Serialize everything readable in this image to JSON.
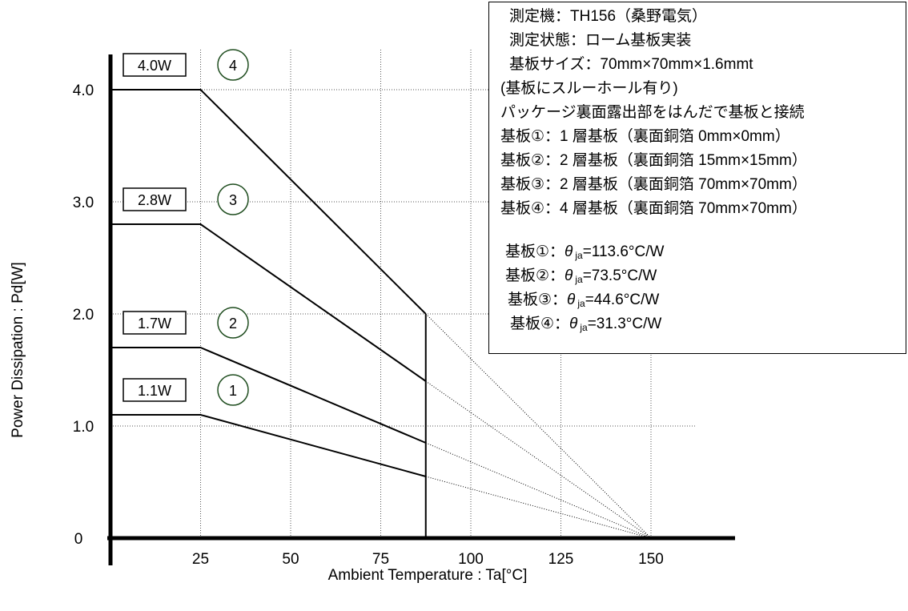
{
  "chart_data": {
    "type": "line",
    "xlabel": "Ambient Temperature : Ta[°C]",
    "ylabel": "Power Dissipation : Pd[W]",
    "xlim": [
      0,
      175
    ],
    "ylim": [
      0,
      4.4
    ],
    "x_ticks": [
      25,
      50,
      75,
      100,
      125,
      150
    ],
    "y_ticks": [
      {
        "value": 0,
        "label": "0"
      },
      {
        "value": 1.0,
        "label": "1.0"
      },
      {
        "value": 2.0,
        "label": "2.0"
      },
      {
        "value": 3.0,
        "label": "3.0"
      },
      {
        "value": 4.0,
        "label": "4.0"
      }
    ],
    "max_temp_cutoff": 87.5,
    "zero_point": 150,
    "grid": true,
    "series": [
      {
        "name": "1",
        "label": "1.1W",
        "points": [
          [
            0,
            1.1
          ],
          [
            25,
            1.1
          ],
          [
            87.5,
            0.55
          ]
        ],
        "extension": [
          [
            87.5,
            0.55
          ],
          [
            150,
            0
          ]
        ]
      },
      {
        "name": "2",
        "label": "1.7W",
        "points": [
          [
            0,
            1.7
          ],
          [
            25,
            1.7
          ],
          [
            87.5,
            0.85
          ]
        ],
        "extension": [
          [
            87.5,
            0.85
          ],
          [
            150,
            0
          ]
        ]
      },
      {
        "name": "3",
        "label": "2.8W",
        "points": [
          [
            0,
            2.8
          ],
          [
            25,
            2.8
          ],
          [
            87.5,
            1.4
          ]
        ],
        "extension": [
          [
            87.5,
            1.4
          ],
          [
            150,
            0
          ]
        ]
      },
      {
        "name": "4",
        "label": "4.0W",
        "points": [
          [
            0,
            4.0
          ],
          [
            25,
            4.0
          ],
          [
            87.5,
            2.0
          ]
        ],
        "extension": [
          [
            87.5,
            2.0
          ],
          [
            150,
            0
          ]
        ]
      }
    ]
  },
  "info": {
    "lines": [
      "測定機：TH156（桑野電気）",
      "測定状態：ローム基板実装",
      "基板サイズ：70mm×70mm×1.6mmt",
      "(基板にスルーホール有り)",
      "パッケージ裏面露出部をはんだで基板と接続",
      "基板①：1 層基板（裏面銅箔 0mm×0mm）",
      "基板②：2 層基板（裏面銅箔 15mm×15mm）",
      "基板③：2 層基板（裏面銅箔 70mm×70mm）",
      "基板④：4 層基板（裏面銅箔 70mm×70mm）"
    ],
    "thetas": [
      {
        "board": "基板①：",
        "symbol": "θ",
        "sub": "ja",
        "value": "=113.6°C/W"
      },
      {
        "board": "基板②：",
        "symbol": "θ",
        "sub": "ja",
        "value": "=73.5°C/W"
      },
      {
        "board": "基板③：",
        "symbol": "θ",
        "sub": "ja",
        "value": "=44.6°C/W"
      },
      {
        "board": "基板④：",
        "symbol": "θ",
        "sub": "ja",
        "value": "=31.3°C/W"
      }
    ]
  },
  "colors": {
    "axis": "#000000",
    "line": "#000000",
    "grid": "#555555",
    "marker_circle": "#1f4d1f"
  }
}
